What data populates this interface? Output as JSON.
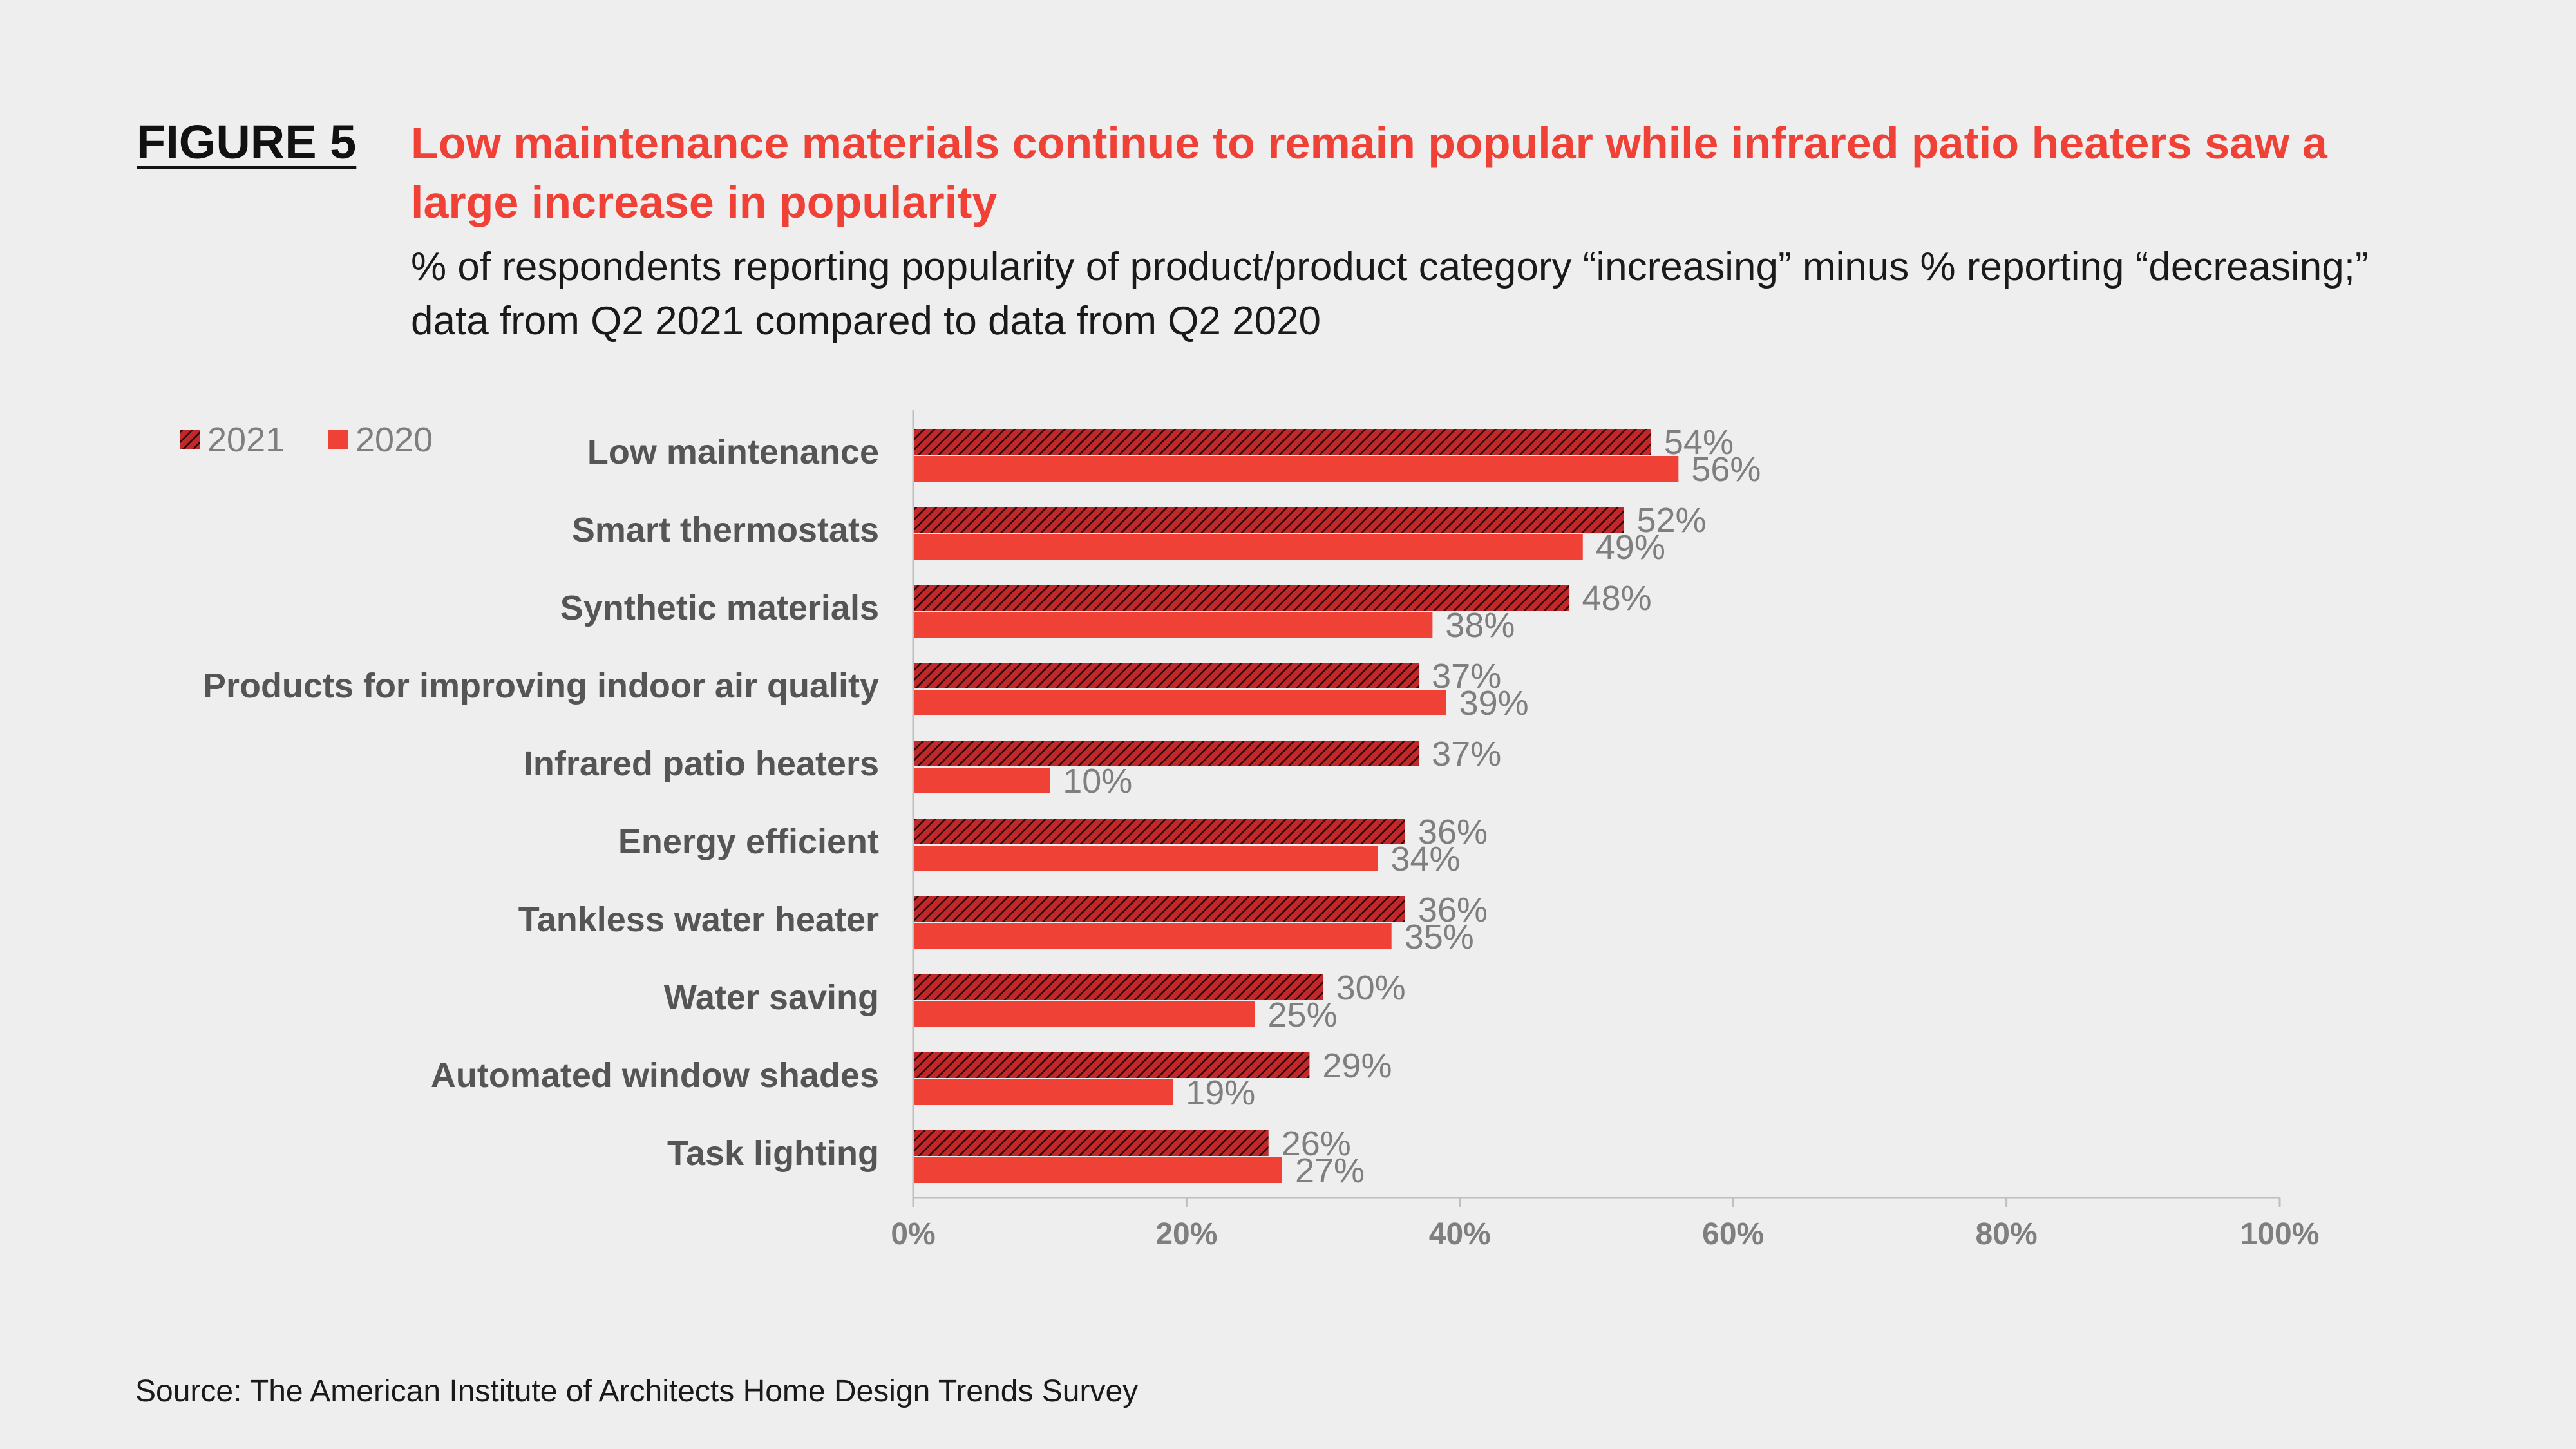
{
  "figure_label": "FIGURE 5",
  "source": "Source: The American Institute of Architects Home Design Trends Survey",
  "colors": {
    "series_2021": "#c0282a",
    "series_2021_hatch": "#2a0606",
    "series_2020": "#ef4136",
    "axis": "#bfbfbf",
    "background": "#eeeeee"
  },
  "chart_data": {
    "type": "bar",
    "orientation": "horizontal",
    "title": "Low maintenance materials continue to remain popular while infrared patio heaters saw a large increase in popularity",
    "subtitle": "% of respondents reporting popularity of product/product category “increasing” minus % reporting “decreasing;” data from Q2 2021 compared to data from Q2 2020",
    "xlabel": "",
    "ylabel": "",
    "categories": [
      "Low maintenance",
      "Smart thermostats",
      "Synthetic materials",
      "Products for improving indoor air quality",
      "Infrared patio heaters",
      "Energy efficient",
      "Tankless water heater",
      "Water saving",
      "Automated window shades",
      "Task lighting"
    ],
    "series": [
      {
        "name": "2021",
        "pattern": "hatched",
        "values": [
          54,
          52,
          48,
          37,
          37,
          36,
          36,
          30,
          29,
          26
        ],
        "labels": [
          "54%",
          "52%",
          "48%",
          "37%",
          "37%",
          "36%",
          "36%",
          "30%",
          "29%",
          "26%"
        ]
      },
      {
        "name": "2020",
        "pattern": "solid",
        "values": [
          56,
          49,
          38,
          39,
          10,
          34,
          35,
          25,
          19,
          27
        ],
        "labels": [
          "56%",
          "49%",
          "38%",
          "39%",
          "10%",
          "34%",
          "35%",
          "25%",
          "19%",
          "27%"
        ]
      }
    ],
    "xlim": [
      0,
      100
    ],
    "xticks": [
      0,
      20,
      40,
      60,
      80,
      100
    ],
    "xtick_labels": [
      "0%",
      "20%",
      "40%",
      "60%",
      "80%",
      "100%"
    ],
    "grid": false,
    "legend_position": "top-left"
  }
}
